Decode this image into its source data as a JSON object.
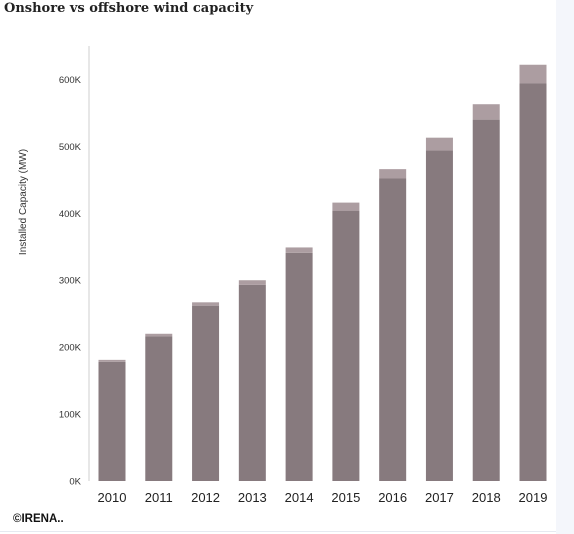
{
  "title": "Onshore vs offshore wind capacity",
  "credit": "©IRENA..",
  "chart_data": {
    "type": "bar",
    "stacked": true,
    "title": "Onshore vs offshore wind capacity",
    "xlabel": "",
    "ylabel": "Installed Capacity (MW)",
    "ylim": [
      0,
      650000
    ],
    "yticks": [
      0,
      100000,
      200000,
      300000,
      400000,
      500000,
      600000
    ],
    "ytick_labels": [
      "0K",
      "100K",
      "200K",
      "300K",
      "400K",
      "500K",
      "600K"
    ],
    "categories": [
      "2010",
      "2011",
      "2012",
      "2013",
      "2014",
      "2015",
      "2016",
      "2017",
      "2018",
      "2019"
    ],
    "series": [
      {
        "values": [
          178000,
          216000,
          262000,
          293000,
          341000,
          404000,
          452000,
          494000,
          540000,
          594000
        ],
        "color": "#877a7e"
      },
      {
        "values": [
          3000,
          4000,
          5000,
          7000,
          8000,
          12000,
          14000,
          19000,
          23000,
          28000
        ],
        "color": "#ac9da1"
      }
    ],
    "grid": false,
    "legend": "none"
  }
}
